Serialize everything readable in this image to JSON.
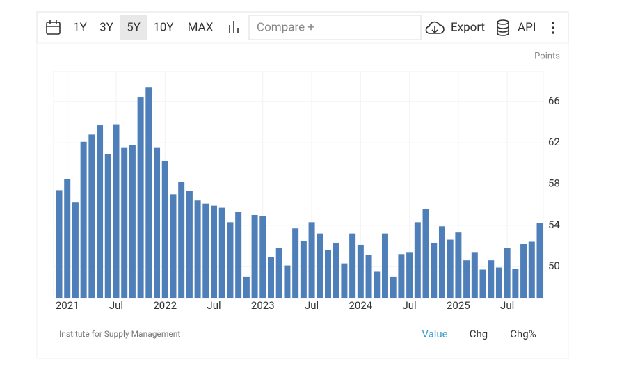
{
  "toolbar": {
    "ranges": [
      "1Y",
      "3Y",
      "5Y",
      "10Y",
      "MAX"
    ],
    "active_range": "5Y",
    "compare": "Compare +",
    "export": "Export",
    "api": "API"
  },
  "chart_data": {
    "type": "bar",
    "unit_label": "Points",
    "color": "#4f7fb8",
    "grid": true,
    "categories": [
      null,
      "2021",
      null,
      null,
      null,
      null,
      null,
      "Jul",
      null,
      null,
      null,
      null,
      null,
      "2022",
      null,
      null,
      null,
      null,
      null,
      "Jul",
      null,
      null,
      null,
      null,
      null,
      "2023",
      null,
      null,
      null,
      null,
      null,
      "Jul",
      null,
      null,
      null,
      null,
      null,
      "2024",
      null,
      null,
      null,
      null,
      null,
      "Jul",
      null,
      null,
      null,
      null,
      null,
      "2025",
      null,
      null,
      null,
      null,
      null,
      "Jul",
      null,
      null,
      null,
      null
    ],
    "values": [
      57.4,
      58.5,
      56.2,
      62.1,
      62.8,
      63.7,
      60.9,
      63.8,
      61.5,
      61.8,
      66.4,
      67.4,
      61.5,
      60.2,
      57.0,
      58.2,
      57.3,
      56.4,
      56.1,
      55.9,
      55.7,
      54.3,
      55.3,
      49.0,
      55.0,
      54.9,
      50.9,
      51.8,
      50.1,
      53.7,
      52.5,
      54.3,
      53.2,
      51.6,
      52.3,
      50.3,
      53.2,
      52.1,
      51.1,
      49.5,
      53.2,
      49.0,
      51.2,
      51.4,
      54.3,
      55.6,
      52.3,
      53.9,
      52.6,
      53.3,
      50.6,
      51.4,
      49.7,
      50.6,
      49.9,
      51.8,
      49.8,
      52.2,
      52.4,
      54.2
    ],
    "ylim": [
      46.9,
      68.9
    ],
    "yticks": [
      50,
      54,
      58,
      62,
      66
    ],
    "source": "Institute for Supply Management",
    "tabs": [
      "Value",
      "Chg",
      "Chg%"
    ],
    "active_tab": "Value"
  }
}
